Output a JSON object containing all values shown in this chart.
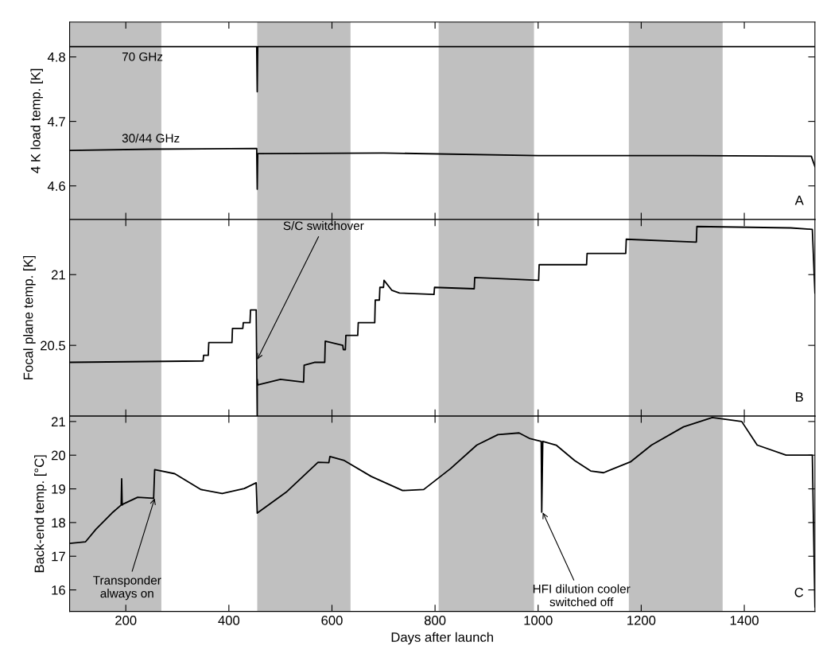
{
  "chart_data": [
    {
      "type": "line",
      "ylabel": "4 K load temp. [K]",
      "xlim": [
        91,
        1537
      ],
      "xticks": [
        200,
        400,
        600,
        800,
        1000,
        1200,
        1400
      ],
      "ylim": [
        4.548,
        4.854
      ],
      "yticks": [
        4.6,
        4.7,
        4.8
      ],
      "tick_labels": "y",
      "grid": false,
      "legend": false,
      "bands": [
        {
          "axis": "x",
          "from": 91,
          "to": 269,
          "color": "#c0c0c0"
        },
        {
          "axis": "x",
          "from": 455,
          "to": 636,
          "color": "#c0c0c0"
        },
        {
          "axis": "x",
          "from": 807,
          "to": 992,
          "color": "#c0c0c0"
        },
        {
          "axis": "x",
          "from": 1176,
          "to": 1358,
          "color": "#c0c0c0"
        }
      ],
      "series": [
        {
          "name": "70 GHz",
          "color": "#000000",
          "x": [
            91,
            454,
            455,
            456,
            1537
          ],
          "values": [
            4.816,
            4.816,
            4.746,
            4.816,
            4.816
          ]
        },
        {
          "name": "30/44 GHz",
          "color": "#000000",
          "x": [
            91,
            250,
            454,
            455,
            456,
            700,
            1000,
            1300,
            1530,
            1537
          ],
          "values": [
            4.655,
            4.657,
            4.658,
            4.595,
            4.65,
            4.651,
            4.647,
            4.647,
            4.646,
            4.63
          ]
        }
      ],
      "annotations": [
        "A"
      ]
    },
    {
      "type": "line",
      "ylabel": "Focal plane temp. [K]",
      "xlim": [
        91,
        1537
      ],
      "xticks": [
        200,
        400,
        600,
        800,
        1000,
        1200,
        1400
      ],
      "ylim": [
        20.0,
        21.39
      ],
      "yticks": [
        20.5,
        21
      ],
      "tick_labels": "y",
      "grid": false,
      "legend": false,
      "bands": [
        {
          "axis": "x",
          "from": 91,
          "to": 269,
          "color": "#c0c0c0"
        },
        {
          "axis": "x",
          "from": 455,
          "to": 636,
          "color": "#c0c0c0"
        },
        {
          "axis": "x",
          "from": 807,
          "to": 992,
          "color": "#c0c0c0"
        },
        {
          "axis": "x",
          "from": 1176,
          "to": 1358,
          "color": "#c0c0c0"
        }
      ],
      "series": [
        {
          "color": "#000000",
          "x": [
            91,
            350,
            351,
            360,
            361,
            406,
            407,
            427,
            428,
            441,
            442,
            453,
            455,
            455,
            456,
            500,
            545,
            546,
            566,
            586,
            587,
            621,
            622,
            626,
            627,
            650,
            651,
            683,
            684,
            692,
            693,
            700,
            701,
            716,
            731,
            798,
            799,
            876,
            877,
            1001,
            1002,
            1094,
            1095,
            1170,
            1171,
            1307,
            1308,
            1490,
            1532,
            1537
          ],
          "values": [
            20.38,
            20.39,
            20.43,
            20.43,
            20.52,
            20.52,
            20.62,
            20.62,
            20.66,
            20.66,
            20.75,
            20.75,
            20.0,
            20.26,
            20.22,
            20.26,
            20.24,
            20.36,
            20.38,
            20.38,
            20.53,
            20.5,
            20.47,
            20.47,
            20.57,
            20.57,
            20.66,
            20.66,
            20.82,
            20.82,
            20.91,
            20.91,
            20.96,
            20.89,
            20.87,
            20.86,
            20.91,
            20.9,
            20.98,
            20.96,
            21.07,
            21.07,
            21.15,
            21.15,
            21.25,
            21.23,
            21.34,
            21.33,
            21.32,
            20.87
          ]
        }
      ],
      "annotations": [
        {
          "text": "S/C switchover",
          "x": 455,
          "y": 20.4
        },
        "B"
      ]
    },
    {
      "type": "line",
      "xlabel": "Days after launch",
      "ylabel": "Back-end temp. [°C]",
      "xlim": [
        91,
        1537
      ],
      "xticks": [
        200,
        400,
        600,
        800,
        1000,
        1200,
        1400
      ],
      "ylim": [
        15.36,
        21.16
      ],
      "yticks": [
        16,
        17,
        18,
        19,
        20,
        21
      ],
      "grid": false,
      "legend": false,
      "bands": [
        {
          "axis": "x",
          "from": 91,
          "to": 269,
          "color": "#c0c0c0"
        },
        {
          "axis": "x",
          "from": 455,
          "to": 636,
          "color": "#c0c0c0"
        },
        {
          "axis": "x",
          "from": 807,
          "to": 992,
          "color": "#c0c0c0"
        },
        {
          "axis": "x",
          "from": 1176,
          "to": 1358,
          "color": "#c0c0c0"
        }
      ],
      "series": [
        {
          "color": "#000000",
          "x": [
            91,
            122,
            142,
            173,
            191,
            192,
            193,
            195,
            223,
            254,
            256,
            295,
            346,
            387,
            430,
            453,
            455,
            511,
            573,
            594,
            596,
            624,
            676,
            737,
            778,
            830,
            881,
            922,
            963,
            983,
            1006,
            1007,
            1009,
            1035,
            1071,
            1102,
            1127,
            1179,
            1220,
            1282,
            1338,
            1395,
            1425,
            1481,
            1532,
            1537
          ],
          "values": [
            17.38,
            17.43,
            17.8,
            18.28,
            18.52,
            19.3,
            18.52,
            18.55,
            18.75,
            18.72,
            19.57,
            19.45,
            18.98,
            18.86,
            19.01,
            19.18,
            18.28,
            18.9,
            19.79,
            19.78,
            19.96,
            19.84,
            19.37,
            18.95,
            18.98,
            19.6,
            20.3,
            20.61,
            20.66,
            20.5,
            20.41,
            18.31,
            20.41,
            20.3,
            19.84,
            19.53,
            19.48,
            19.8,
            20.3,
            20.84,
            21.12,
            21.0,
            20.3,
            20.0,
            20.0,
            15.5
          ]
        }
      ],
      "annotations": [
        {
          "text": "Transponder\nalways on",
          "x": 256,
          "y": 18.72
        },
        {
          "text": "HFI dilution cooler\nswitched off",
          "x": 1009,
          "y": 18.3
        },
        "C"
      ]
    }
  ]
}
